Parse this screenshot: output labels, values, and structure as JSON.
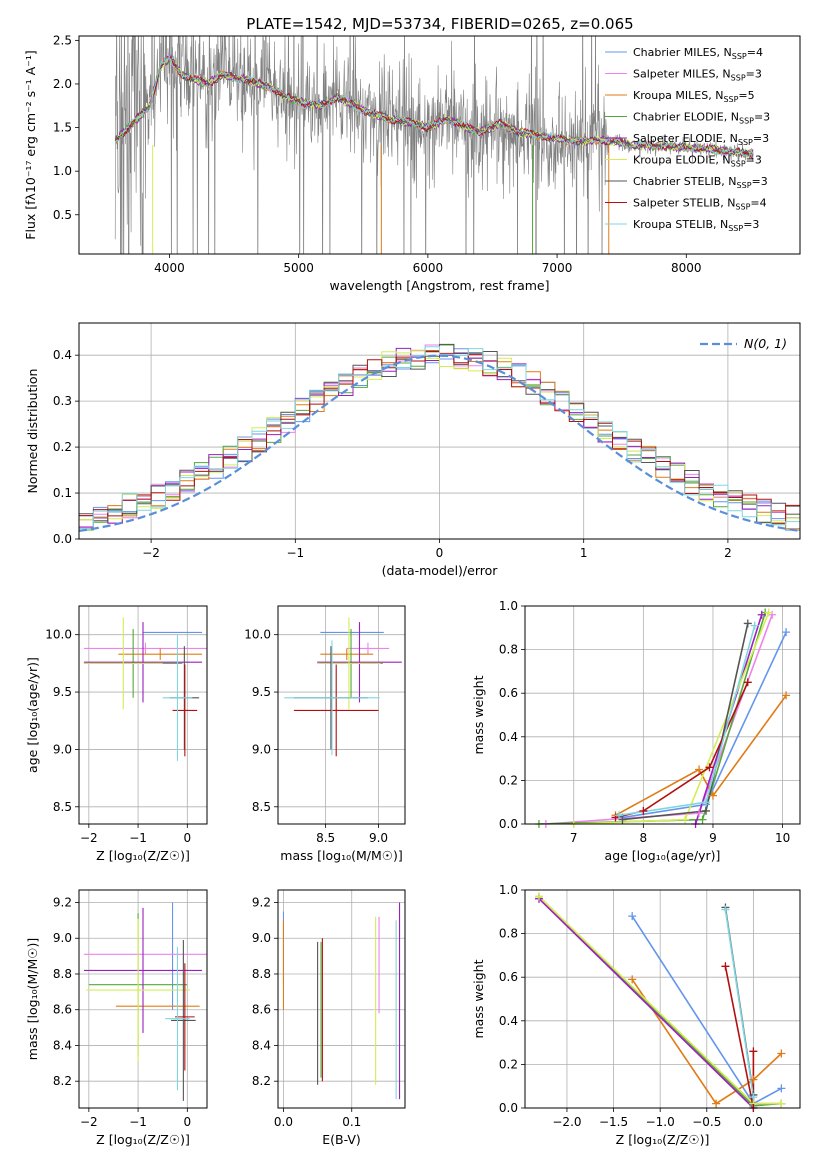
{
  "title": "PLATE=1542, MJD=53734, FIBERID=0265, z=0.065",
  "colors": {
    "Chabrier MILES": "#6495ed",
    "Salpeter MILES": "#ee82ee",
    "Kroupa MILES": "#e07b16",
    "Chabrier ELODIE": "#55a838",
    "Salpeter ELODIE": "#9c1fbf",
    "Kroupa ELODIE": "#d4ed55",
    "Chabrier STELIB": "#555555",
    "Salpeter STELIB": "#b21010",
    "Kroupa STELIB": "#7fd6e0",
    "data": "#808080",
    "normal": "#5a8fd8",
    "grid": "#b0b0b0"
  },
  "chart_data": [
    {
      "id": "spectrum",
      "type": "line",
      "xlabel": "wavelength [Angstrom, rest frame]",
      "ylabel": "Flux [fλ10⁻¹⁷ erg cm⁻² s⁻¹ A⁻¹]",
      "xlim": [
        3300,
        8880
      ],
      "ylim": [
        0.05,
        2.55
      ],
      "xticks": [
        4000,
        5000,
        6000,
        7000,
        8000
      ],
      "yticks": [
        0.5,
        1.0,
        1.5,
        2.0,
        2.5
      ],
      "grid": false,
      "legend_position": "upper-right",
      "legend": [
        {
          "model": "Chabrier MILES",
          "label": "Chabrier MILES, N",
          "sub": "SSP",
          "n": "=4"
        },
        {
          "model": "Salpeter MILES",
          "label": "Salpeter MILES, N",
          "sub": "SSP",
          "n": "=3"
        },
        {
          "model": "Kroupa MILES",
          "label": "Kroupa MILES, N",
          "sub": "SSP",
          "n": "=5"
        },
        {
          "model": "Chabrier ELODIE",
          "label": "Chabrier ELODIE, N",
          "sub": "SSP",
          "n": "=3"
        },
        {
          "model": "Salpeter ELODIE",
          "label": "Salpeter ELODIE, N",
          "sub": "SSP",
          "n": "=3"
        },
        {
          "model": "Kroupa ELODIE",
          "label": "Kroupa ELODIE, N",
          "sub": "SSP",
          "n": "=3"
        },
        {
          "model": "Chabrier STELIB",
          "label": "Chabrier STELIB, N",
          "sub": "SSP",
          "n": "=3"
        },
        {
          "model": "Salpeter STELIB",
          "label": "Salpeter STELIB, N",
          "sub": "SSP",
          "n": "=4"
        },
        {
          "model": "Kroupa STELIB",
          "label": "Kroupa STELIB, N",
          "sub": "SSP",
          "n": "=3"
        }
      ],
      "continuum": [
        [
          3580,
          1.35
        ],
        [
          3650,
          1.45
        ],
        [
          3750,
          1.6
        ],
        [
          3850,
          1.75
        ],
        [
          3930,
          2.2
        ],
        [
          4000,
          2.3
        ],
        [
          4100,
          2.1
        ],
        [
          4300,
          2.0
        ],
        [
          4400,
          2.1
        ],
        [
          4600,
          2.05
        ],
        [
          4800,
          1.95
        ],
        [
          4900,
          1.85
        ],
        [
          5000,
          1.8
        ],
        [
          5175,
          1.75
        ],
        [
          5300,
          1.85
        ],
        [
          5500,
          1.7
        ],
        [
          5700,
          1.6
        ],
        [
          5890,
          1.55
        ],
        [
          6000,
          1.5
        ],
        [
          6150,
          1.6
        ],
        [
          6300,
          1.5
        ],
        [
          6400,
          1.45
        ],
        [
          6563,
          1.55
        ],
        [
          6700,
          1.45
        ],
        [
          6900,
          1.4
        ],
        [
          7100,
          1.35
        ],
        [
          7400,
          1.35
        ],
        [
          7600,
          1.3
        ],
        [
          7900,
          1.28
        ],
        [
          8200,
          1.25
        ],
        [
          8500,
          1.2
        ]
      ],
      "data_range": [
        3580,
        8520
      ],
      "noisy_until": 7400
    },
    {
      "id": "residuals",
      "type": "bar",
      "xlabel": "(data-model)/error",
      "ylabel": "Normed distribution",
      "xlim": [
        -2.5,
        2.5
      ],
      "ylim": [
        0.0,
        0.47
      ],
      "xticks": [
        -2,
        -1,
        0,
        1,
        2
      ],
      "yticks": [
        0.0,
        0.1,
        0.2,
        0.3,
        0.4
      ],
      "grid": true,
      "legend_position": "upper-right",
      "legend_label": "N(0, 1)",
      "bins": 50
    },
    {
      "id": "age-vs-Z",
      "type": "scatter",
      "xlabel": "Z [log₁₀(Z/Z☉)]",
      "ylabel": "age  [log₁₀(age/yr)]",
      "xlim": [
        -2.2,
        0.4
      ],
      "ylim": [
        8.35,
        10.25
      ],
      "xticks": [
        -2,
        -1,
        0
      ],
      "yticks": [
        8.5,
        9.0,
        9.5,
        10.0
      ],
      "grid": true,
      "points": [
        {
          "model": "Chabrier MILES",
          "x": -0.3,
          "xe": 0.6,
          "y": 10.02,
          "ye": 0.0
        },
        {
          "model": "Salpeter MILES",
          "x": -0.85,
          "xe": 1.25,
          "y": 9.88,
          "ye": 0.05
        },
        {
          "model": "Kroupa MILES",
          "x": -0.55,
          "xe": 0.85,
          "y": 9.83,
          "ye": 0.05
        },
        {
          "model": "Chabrier ELODIE",
          "x": -1.1,
          "xe": 1.0,
          "y": 9.75,
          "ye": 0.3
        },
        {
          "model": "Salpeter ELODIE",
          "x": -0.9,
          "xe": 1.2,
          "y": 9.76,
          "ye": 0.35
        },
        {
          "model": "Kroupa ELODIE",
          "x": -1.3,
          "xe": 0.8,
          "y": 9.75,
          "ye": 0.4
        },
        {
          "model": "Chabrier STELIB",
          "x": -0.06,
          "xe": 0.3,
          "y": 9.45,
          "ye": 0.45
        },
        {
          "model": "Salpeter STELIB",
          "x": -0.05,
          "xe": 0.25,
          "y": 9.34,
          "ye": 0.4
        },
        {
          "model": "Kroupa STELIB",
          "x": -0.2,
          "xe": 0.3,
          "y": 9.45,
          "ye": 0.55
        }
      ]
    },
    {
      "id": "age-vs-mass",
      "type": "scatter",
      "xlabel": "mass [log₁₀(M/M☉)]",
      "ylabel": "",
      "xlim": [
        8.05,
        9.25
      ],
      "ylim": [
        8.35,
        10.25
      ],
      "xticks": [
        8.5,
        9.0
      ],
      "yticks": [
        8.5,
        9.0,
        9.5,
        10.0
      ],
      "grid": true,
      "points": [
        {
          "model": "Chabrier MILES",
          "x": 8.75,
          "xe": 0.3,
          "y": 10.02,
          "ye": 0.0
        },
        {
          "model": "Salpeter MILES",
          "x": 8.9,
          "xe": 0.2,
          "y": 9.88,
          "ye": 0.05
        },
        {
          "model": "Kroupa MILES",
          "x": 8.7,
          "xe": 0.25,
          "y": 9.83,
          "ye": 0.05
        },
        {
          "model": "Chabrier ELODIE",
          "x": 8.74,
          "xe": 0.3,
          "y": 9.75,
          "ye": 0.3
        },
        {
          "model": "Salpeter ELODIE",
          "x": 8.82,
          "xe": 0.4,
          "y": 9.76,
          "ye": 0.35
        },
        {
          "model": "Kroupa ELODIE",
          "x": 8.72,
          "xe": 0.3,
          "y": 9.75,
          "ye": 0.4
        },
        {
          "model": "Chabrier STELIB",
          "x": 8.55,
          "xe": 0.35,
          "y": 9.45,
          "ye": 0.45
        },
        {
          "model": "Salpeter STELIB",
          "x": 8.6,
          "xe": 0.4,
          "y": 9.34,
          "ye": 0.4
        },
        {
          "model": "Kroupa STELIB",
          "x": 8.56,
          "xe": 0.45,
          "y": 9.45,
          "ye": 0.5
        }
      ]
    },
    {
      "id": "weight-vs-age",
      "type": "line",
      "xlabel": "age  [log₁₀(age/yr)]",
      "ylabel": "mass weight",
      "xlim": [
        6.3,
        10.25
      ],
      "ylim": [
        0.0,
        1.0
      ],
      "xticks": [
        7,
        8,
        9,
        10
      ],
      "yticks": [
        0.0,
        0.2,
        0.4,
        0.6,
        0.8,
        1.0
      ],
      "grid": true,
      "series": [
        {
          "model": "Chabrier MILES",
          "points": [
            [
              7.7,
              0.03
            ],
            [
              8.9,
              0.09
            ],
            [
              10.05,
              0.88
            ]
          ]
        },
        {
          "model": "Salpeter MILES",
          "points": [
            [
              6.6,
              0.0
            ],
            [
              8.8,
              0.05
            ],
            [
              9.85,
              0.96
            ]
          ]
        },
        {
          "model": "Kroupa MILES",
          "points": [
            [
              7.6,
              0.04
            ],
            [
              8.8,
              0.25
            ],
            [
              9.0,
              0.13
            ],
            [
              10.05,
              0.59
            ]
          ]
        },
        {
          "model": "Chabrier ELODIE",
          "points": [
            [
              6.5,
              0.0
            ],
            [
              8.85,
              0.02
            ],
            [
              9.75,
              0.97
            ]
          ]
        },
        {
          "model": "Salpeter ELODIE",
          "points": [
            [
              8.75,
              0.0
            ],
            [
              9.7,
              0.96
            ]
          ]
        },
        {
          "model": "Kroupa ELODIE",
          "points": [
            [
              7.0,
              0.0
            ],
            [
              8.6,
              0.02
            ],
            [
              9.8,
              0.97
            ]
          ]
        },
        {
          "model": "Chabrier STELIB",
          "points": [
            [
              7.7,
              0.02
            ],
            [
              8.9,
              0.06
            ],
            [
              9.5,
              0.92
            ]
          ]
        },
        {
          "model": "Salpeter STELIB",
          "points": [
            [
              7.6,
              0.03
            ],
            [
              8.0,
              0.06
            ],
            [
              8.95,
              0.26
            ],
            [
              9.5,
              0.65
            ]
          ]
        },
        {
          "model": "Kroupa STELIB",
          "points": [
            [
              7.65,
              0.04
            ],
            [
              8.9,
              0.1
            ],
            [
              9.6,
              0.91
            ]
          ]
        }
      ]
    },
    {
      "id": "mass-vs-Z",
      "type": "scatter",
      "xlabel": "Z [log₁₀(Z/Z☉)]",
      "ylabel": "mass [log₁₀(M/M☉)]",
      "xlim": [
        -2.2,
        0.4
      ],
      "ylim": [
        8.05,
        9.27
      ],
      "xticks": [
        -2,
        -1,
        0
      ],
      "yticks": [
        8.2,
        8.4,
        8.6,
        8.8,
        9.0,
        9.2
      ],
      "grid": true,
      "points": [
        {
          "model": "Chabrier MILES",
          "x": -0.3,
          "xe": 0.0,
          "y": 8.9,
          "ye": 0.3
        },
        {
          "model": "Salpeter MILES",
          "x": -0.85,
          "xe": 1.25,
          "y": 8.91,
          "ye": 0.0
        },
        {
          "model": "Kroupa MILES",
          "x": -0.6,
          "xe": 0.85,
          "y": 8.62,
          "ye": 0.0
        },
        {
          "model": "Chabrier ELODIE",
          "x": -1.0,
          "xe": 1.0,
          "y": 8.74,
          "ye": 0.4
        },
        {
          "model": "Salpeter ELODIE",
          "x": -0.9,
          "xe": 1.2,
          "y": 8.82,
          "ye": 0.35
        },
        {
          "model": "Kroupa ELODIE",
          "x": -1.0,
          "xe": 1.05,
          "y": 8.71,
          "ye": 0.4
        },
        {
          "model": "Chabrier STELIB",
          "x": -0.08,
          "xe": 0.25,
          "y": 8.54,
          "ye": 0.45
        },
        {
          "model": "Salpeter STELIB",
          "x": -0.05,
          "xe": 0.2,
          "y": 8.56,
          "ye": 0.3
        },
        {
          "model": "Kroupa STELIB",
          "x": -0.2,
          "xe": 0.25,
          "y": 8.55,
          "ye": 0.4
        }
      ]
    },
    {
      "id": "mass-vs-EBV",
      "type": "scatter",
      "xlabel": "E(B-V)",
      "ylabel": "",
      "xlim": [
        -0.008,
        0.178
      ],
      "ylim": [
        8.05,
        9.27
      ],
      "xticks": [
        0.0,
        0.1
      ],
      "yticks": [
        8.2,
        8.4,
        8.6,
        8.8,
        9.0,
        9.2
      ],
      "grid": true,
      "points": [
        {
          "model": "Chabrier MILES",
          "x": 0.0,
          "y": 8.95,
          "ye": 0.2
        },
        {
          "model": "Kroupa MILES",
          "x": 0.0,
          "y": 8.85,
          "ye": 0.25
        },
        {
          "model": "Chabrier ELODIE",
          "x": 0.055,
          "y": 8.6,
          "ye": 0.38
        },
        {
          "model": "Salpeter ELODIE",
          "x": 0.17,
          "y": 8.65,
          "ye": 0.55
        },
        {
          "model": "Kroupa ELODIE",
          "x": 0.135,
          "y": 8.65,
          "ye": 0.47
        },
        {
          "model": "Chabrier STELIB",
          "x": 0.05,
          "y": 8.58,
          "ye": 0.4
        },
        {
          "model": "Salpeter STELIB",
          "x": 0.057,
          "y": 8.6,
          "ye": 0.4
        },
        {
          "model": "Salpeter MILES",
          "x": 0.14,
          "y": 8.85,
          "ye": 0.27
        },
        {
          "model": "Kroupa STELIB",
          "x": 0.165,
          "y": 8.6,
          "ye": 0.5
        }
      ]
    },
    {
      "id": "weight-vs-Z",
      "type": "line",
      "xlabel": "Z [log₁₀(Z/Z☉)]",
      "ylabel": "mass weight",
      "xlim": [
        -2.45,
        0.5
      ],
      "ylim": [
        0.0,
        1.0
      ],
      "xticks": [
        -2.0,
        -1.5,
        -1.0,
        -0.5,
        0.0
      ],
      "yticks": [
        0.0,
        0.2,
        0.4,
        0.6,
        0.8,
        1.0
      ],
      "grid": true,
      "series": [
        {
          "model": "Chabrier MILES",
          "points": [
            [
              -1.3,
              0.88
            ],
            [
              0.0,
              0.02
            ],
            [
              0.3,
              0.09
            ]
          ]
        },
        {
          "model": "Salpeter MILES",
          "points": [
            [
              -2.3,
              0.96
            ],
            [
              0.0,
              0.02
            ],
            [
              0.3,
              0.02
            ]
          ]
        },
        {
          "model": "Kroupa MILES",
          "points": [
            [
              -1.3,
              0.59
            ],
            [
              -0.4,
              0.02
            ],
            [
              0.0,
              0.13
            ],
            [
              0.3,
              0.25
            ]
          ]
        },
        {
          "model": "Chabrier ELODIE",
          "points": [
            [
              -2.3,
              0.97
            ],
            [
              0.0,
              0.01
            ],
            [
              0.3,
              0.02
            ]
          ]
        },
        {
          "model": "Salpeter ELODIE",
          "points": [
            [
              -2.3,
              0.96
            ],
            [
              0.0,
              0.0
            ]
          ]
        },
        {
          "model": "Kroupa ELODIE",
          "points": [
            [
              -2.3,
              0.97
            ],
            [
              0.0,
              0.02
            ],
            [
              0.3,
              0.02
            ]
          ]
        },
        {
          "model": "Chabrier STELIB",
          "points": [
            [
              -0.3,
              0.92
            ],
            [
              0.0,
              0.06
            ]
          ]
        },
        {
          "model": "Salpeter STELIB",
          "points": [
            [
              -0.3,
              0.65
            ],
            [
              0.0,
              0.0
            ],
            [
              0.0,
              0.26
            ]
          ]
        },
        {
          "model": "Kroupa STELIB",
          "points": [
            [
              -0.3,
              0.91
            ],
            [
              0.0,
              0.05
            ]
          ]
        }
      ]
    }
  ]
}
